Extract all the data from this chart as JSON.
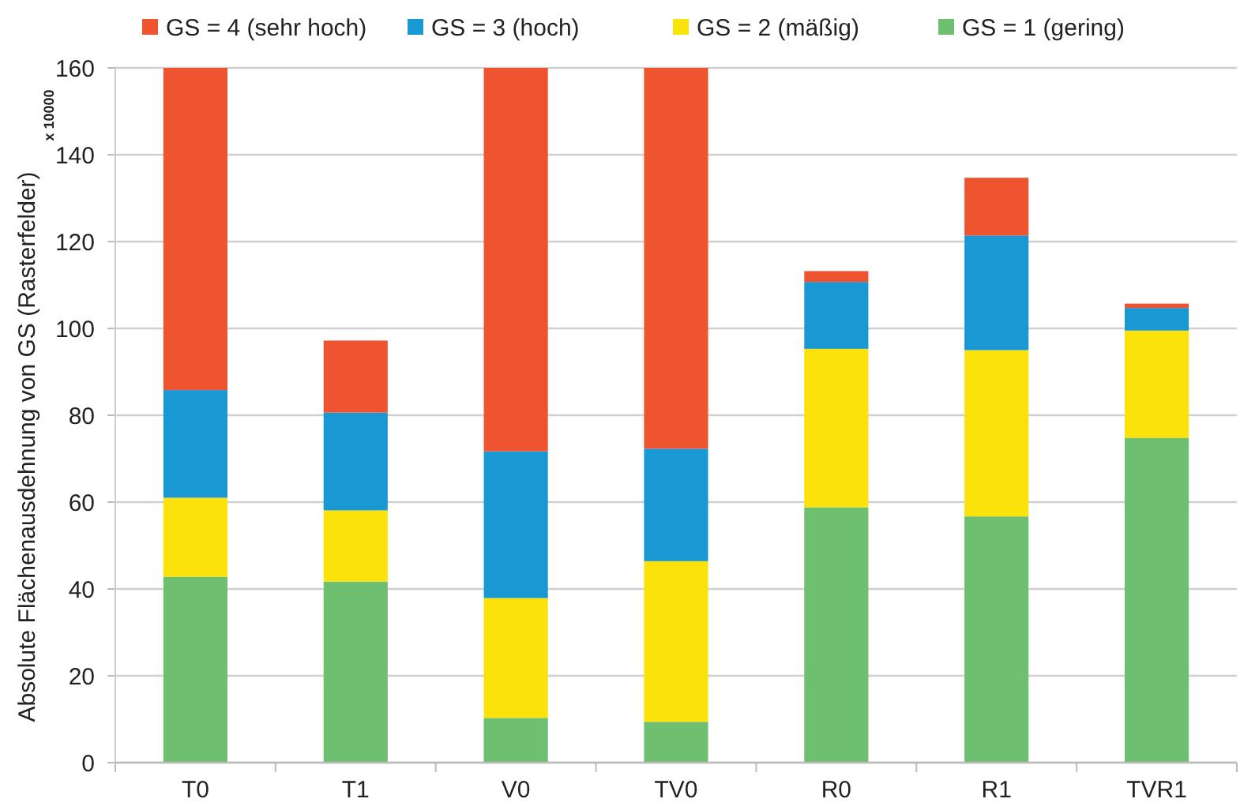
{
  "chart_data": {
    "type": "bar",
    "stacked": true,
    "categories": [
      "T0",
      "T1",
      "V0",
      "TV0",
      "R0",
      "R1",
      "TVR1"
    ],
    "series": [
      {
        "name": "GS = 1 (gering)",
        "color": "#6ebf6f",
        "values": [
          42.8,
          41.7,
          10.3,
          9.4,
          58.8,
          56.7,
          74.8
        ]
      },
      {
        "name": "GS = 2 (mäßig)",
        "color": "#fae20a",
        "values": [
          18.2,
          16.4,
          27.6,
          37.0,
          36.5,
          38.3,
          24.7
        ]
      },
      {
        "name": "GS = 3 (hoch)",
        "color": "#1a98d3",
        "values": [
          24.8,
          22.5,
          33.8,
          25.9,
          15.4,
          26.4,
          5.2
        ]
      },
      {
        "name": "GS = 4 (sehr hoch)",
        "color": "#ee5430",
        "values": [
          74.2,
          16.6,
          88.3,
          87.7,
          2.5,
          13.3,
          1.0
        ]
      }
    ],
    "ylabel": "Absolute Flächenausdehnung von GS (Rasterfelder)",
    "annotations": [
      "x 10000"
    ],
    "ylim": [
      0,
      160
    ],
    "yticks": [
      0,
      20,
      40,
      60,
      80,
      100,
      120,
      140,
      160
    ],
    "grid": "y",
    "legend": "top"
  }
}
